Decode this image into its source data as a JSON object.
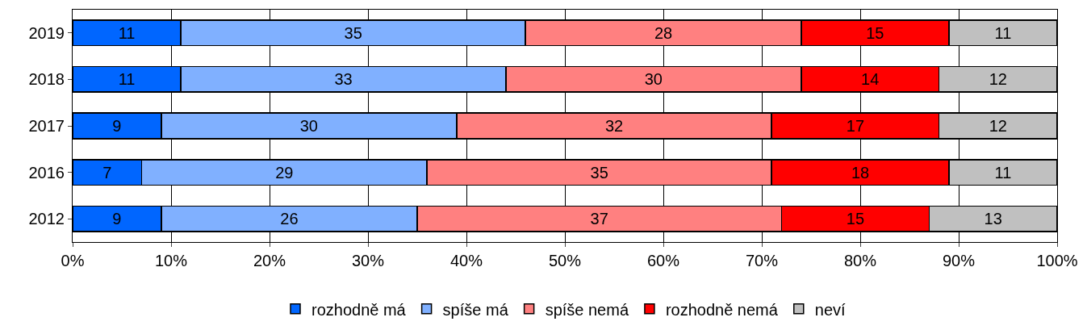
{
  "chart_data": {
    "type": "bar",
    "orientation": "horizontal",
    "stacked": true,
    "data_labels": true,
    "categories": [
      "2019",
      "2018",
      "2017",
      "2016",
      "2012"
    ],
    "series": [
      {
        "name": "rozhodně má",
        "color": "#0066ff",
        "values": [
          11,
          11,
          9,
          7,
          9
        ]
      },
      {
        "name": "spíše má",
        "color": "#80b0ff",
        "values": [
          35,
          33,
          30,
          29,
          26
        ]
      },
      {
        "name": "spíše nemá",
        "color": "#ff8080",
        "values": [
          28,
          30,
          32,
          35,
          37
        ]
      },
      {
        "name": "rozhodně nemá",
        "color": "#ff0000",
        "values": [
          15,
          14,
          17,
          18,
          15
        ]
      },
      {
        "name": "neví",
        "color": "#c0c0c0",
        "values": [
          11,
          12,
          12,
          11,
          13
        ]
      }
    ],
    "xlim": [
      0,
      100
    ],
    "xticks": [
      {
        "value": 0,
        "label": "0%"
      },
      {
        "value": 10,
        "label": "10%"
      },
      {
        "value": 20,
        "label": "20%"
      },
      {
        "value": 30,
        "label": "30%"
      },
      {
        "value": 40,
        "label": "40%"
      },
      {
        "value": 50,
        "label": "50%"
      },
      {
        "value": 60,
        "label": "60%"
      },
      {
        "value": 70,
        "label": "70%"
      },
      {
        "value": 80,
        "label": "80%"
      },
      {
        "value": 90,
        "label": "90%"
      },
      {
        "value": 100,
        "label": "100%"
      }
    ],
    "grid": "x",
    "legend": "bottom"
  }
}
